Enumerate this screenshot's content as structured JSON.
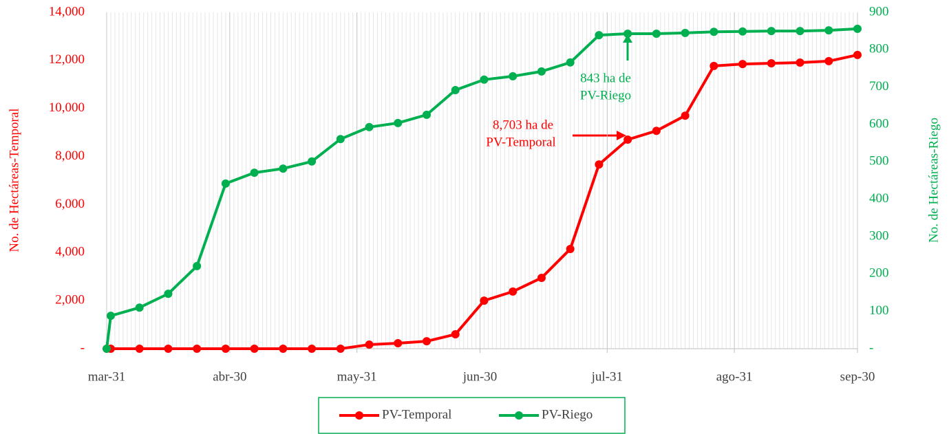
{
  "chart_data": {
    "type": "line",
    "x": [
      "03-31",
      "04-01",
      "04-08",
      "04-15",
      "04-22",
      "04-29",
      "05-06",
      "05-13",
      "05-20",
      "05-27",
      "06-03",
      "06-10",
      "06-17",
      "06-24",
      "07-01",
      "07-08",
      "07-15",
      "07-22",
      "07-29",
      "08-05",
      "08-12",
      "08-19",
      "08-26",
      "09-02",
      "09-09",
      "09-16",
      "09-23",
      "09-30"
    ],
    "xlim": [
      "03-31",
      "09-30"
    ],
    "xticks": [
      {
        "value": "03-31",
        "label": "mar-31"
      },
      {
        "value": "04-30",
        "label": "abr-30"
      },
      {
        "value": "05-31",
        "label": "may-31"
      },
      {
        "value": "06-30",
        "label": "jun-30"
      },
      {
        "value": "07-31",
        "label": "jul-31"
      },
      {
        "value": "08-31",
        "label": "ago-31"
      },
      {
        "value": "09-30",
        "label": "sep-30"
      }
    ],
    "ylabel": "No. de Hectáreas-Temporal",
    "y2label": "No. de Hectáreas-Riego",
    "ylim": [
      0,
      14000
    ],
    "yticks": [
      {
        "value": 0,
        "label": "-"
      },
      {
        "value": 2000,
        "label": "2,000"
      },
      {
        "value": 4000,
        "label": "4,000"
      },
      {
        "value": 6000,
        "label": "6,000"
      },
      {
        "value": 8000,
        "label": "8,000"
      },
      {
        "value": 10000,
        "label": "10,000"
      },
      {
        "value": 12000,
        "label": "12,000"
      },
      {
        "value": 14000,
        "label": "14,000"
      }
    ],
    "y2lim": [
      0,
      900
    ],
    "y2ticks": [
      {
        "value": 0,
        "label": "-"
      },
      100,
      200,
      300,
      400,
      500,
      600,
      700,
      800,
      900
    ],
    "series": [
      {
        "name": "PV-Temporal",
        "color": "#ff0000",
        "axis": "y",
        "values": [
          0,
          0,
          0,
          0,
          0,
          0,
          0,
          0,
          0,
          0,
          170,
          230,
          310,
          600,
          2000,
          2380,
          2950,
          4150,
          7670,
          8703,
          9070,
          9700,
          11770,
          11850,
          11880,
          11910,
          11970,
          12230
        ]
      },
      {
        "name": "PV-Riego",
        "color": "#00b050",
        "axis": "y2",
        "values": [
          0,
          88,
          110,
          147,
          221,
          442,
          471,
          482,
          501,
          561,
          593,
          604,
          626,
          692,
          720,
          729,
          742,
          766,
          839,
          843,
          843,
          845,
          848,
          849,
          850,
          850,
          852,
          856
        ]
      }
    ],
    "annotations": [
      {
        "lines": [
          "843 ha de",
          "PV-Riego"
        ]
      },
      {
        "lines": [
          "8,703 ha de",
          "PV-Temporal"
        ]
      }
    ],
    "grid": true
  }
}
